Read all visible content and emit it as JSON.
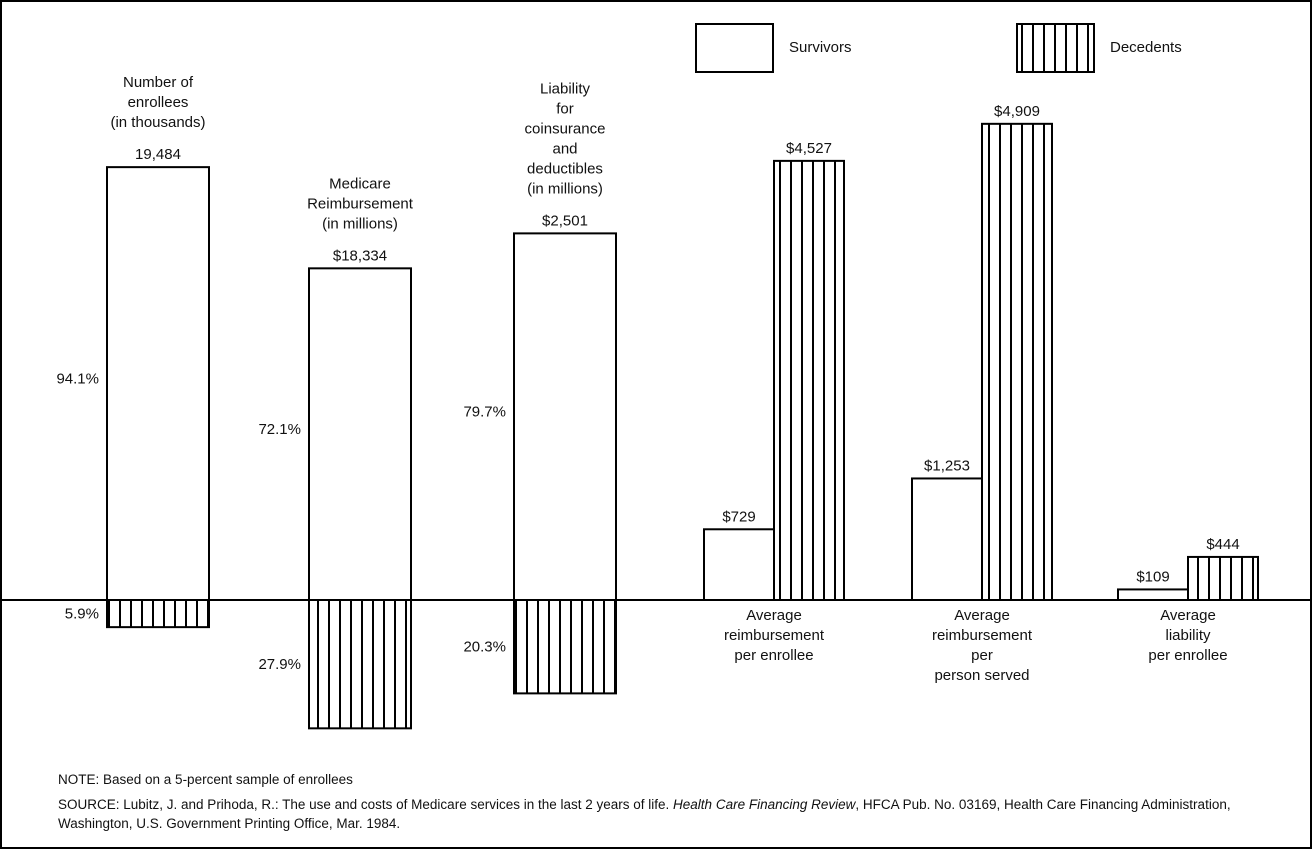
{
  "chart_data": [
    {
      "type": "diverging-share",
      "categories": [
        "Number of\nenrollees\n(in thousands)",
        "Medicare\nReimbursement\n(in millions)",
        "Liability\nfor\ncoinsurance\nand\ndeductibles\n(in millions)"
      ],
      "totals": [
        19484,
        18334,
        2501
      ],
      "total_labels": [
        "19,484",
        "$18,334",
        "$2,501"
      ],
      "series": [
        {
          "pattern": "plain",
          "values": [
            94.1,
            72.1,
            79.7
          ],
          "value_labels": [
            "94.1%",
            "72.1%",
            "79.7%"
          ]
        },
        {
          "pattern": "hatch",
          "values": [
            5.9,
            27.9,
            20.3
          ],
          "value_labels": [
            "5.9%",
            "27.9%",
            "20.3%"
          ]
        }
      ]
    },
    {
      "type": "bar",
      "categories": [
        "Average\nreimbursement\nper enrollee",
        "Average\nreimbursement\nper\nperson served",
        "Average\nliability\nper enrollee"
      ],
      "series": [
        {
          "name": "Survivors",
          "pattern": "plain",
          "values": [
            729,
            1253,
            109
          ],
          "value_labels": [
            "$729",
            "$1,253",
            "$109"
          ]
        },
        {
          "name": "Decedents",
          "pattern": "hatch",
          "values": [
            4527,
            4909,
            444
          ],
          "value_labels": [
            "$4,527",
            "$4,909",
            "$444"
          ]
        }
      ]
    }
  ],
  "note": "NOTE: Based on a 5-percent sample of enrollees",
  "source": [
    "SOURCE: Lubitz, J. and Prihoda, R.: The use and costs of Medicare services in the last 2 years of life. ",
    "Health Care Financing Review",
    ", HFCA Pub. No. 03169, Health Care Financing Administration, Washington, U.S. Government Printing Office, Mar. 1984."
  ]
}
